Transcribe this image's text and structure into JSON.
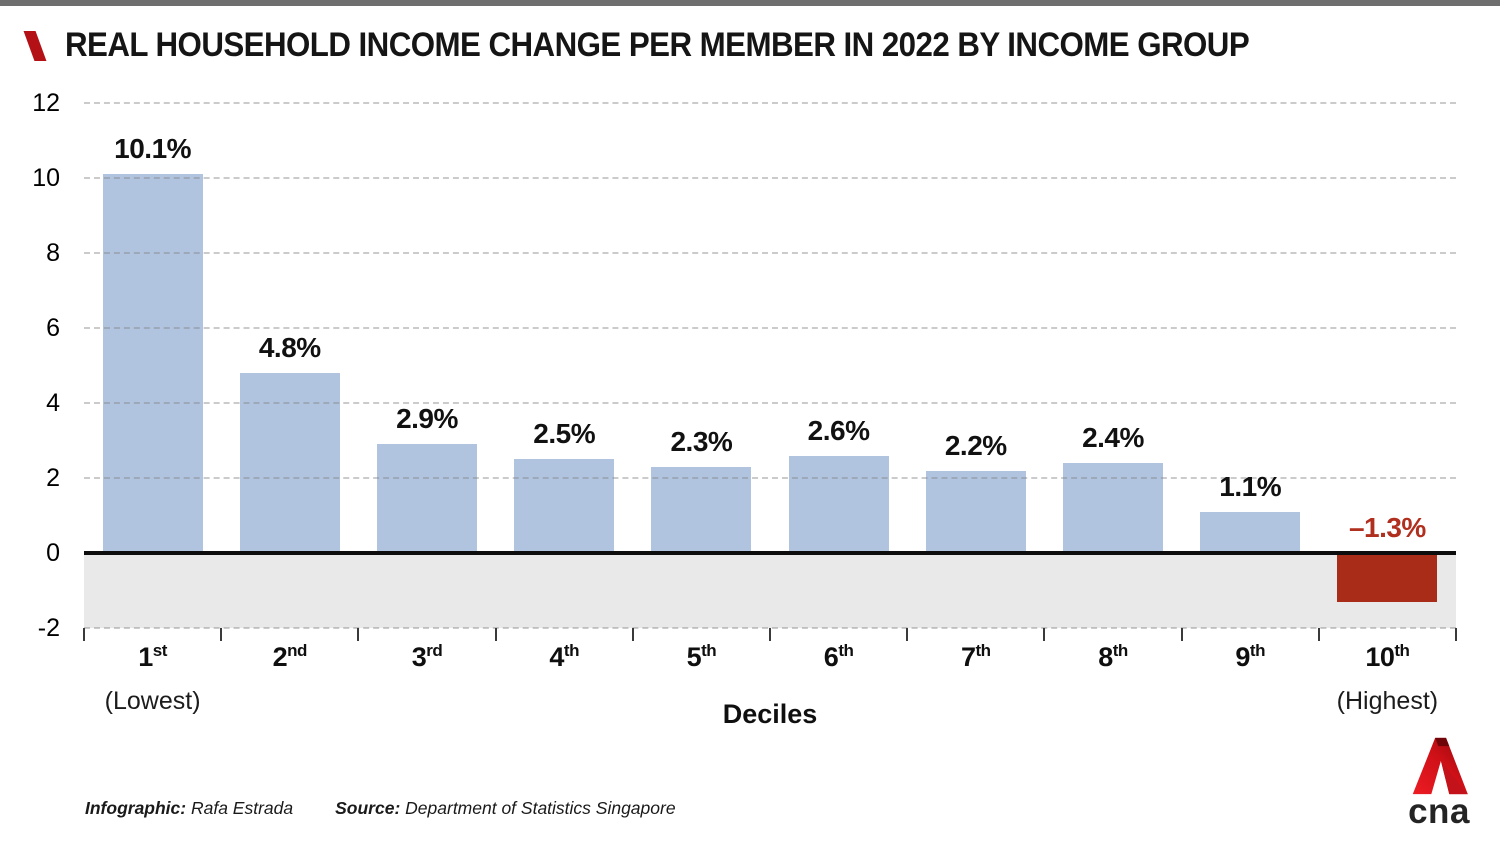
{
  "page": {
    "topbar_color": "#6e6e6e",
    "background": "#ffffff"
  },
  "header": {
    "title": "REAL HOUSEHOLD INCOME CHANGE PER MEMBER IN 2022 BY INCOME GROUP",
    "accent_color": "#b41116"
  },
  "chart_data": {
    "type": "bar",
    "title": "Real household income change per member in 2022 by income group",
    "categories": [
      "1st",
      "2nd",
      "3rd",
      "4th",
      "5th",
      "6th",
      "7th",
      "8th",
      "9th",
      "10th"
    ],
    "category_note_first": "(Lowest)",
    "category_note_last": "(Highest)",
    "values": [
      10.1,
      4.8,
      2.9,
      2.5,
      2.3,
      2.6,
      2.2,
      2.4,
      1.1,
      -1.3
    ],
    "value_labels": [
      "10.1%",
      "4.8%",
      "2.9%",
      "2.5%",
      "2.3%",
      "2.6%",
      "2.2%",
      "2.4%",
      "1.1%",
      "–1.3%"
    ],
    "xlabel": "Deciles",
    "ylabel": "",
    "y_ticks": [
      12,
      10,
      8,
      6,
      4,
      2,
      0,
      -2
    ],
    "ylim": [
      -2,
      12
    ],
    "grid": "horizontal-dashed",
    "legend": "none",
    "bar_color_positive": "#b0c4e0",
    "bar_color_negative": "#a82c17",
    "negative_label_color": "#b02f1e",
    "negative_zone_color": "#e9e9e9"
  },
  "footer": {
    "credit_label": "Infographic:",
    "credit_value": "Rafa Estrada",
    "source_label": "Source:",
    "source_value": "Department of Statistics Singapore"
  },
  "logo": {
    "name": "CNA",
    "text": "cna"
  }
}
